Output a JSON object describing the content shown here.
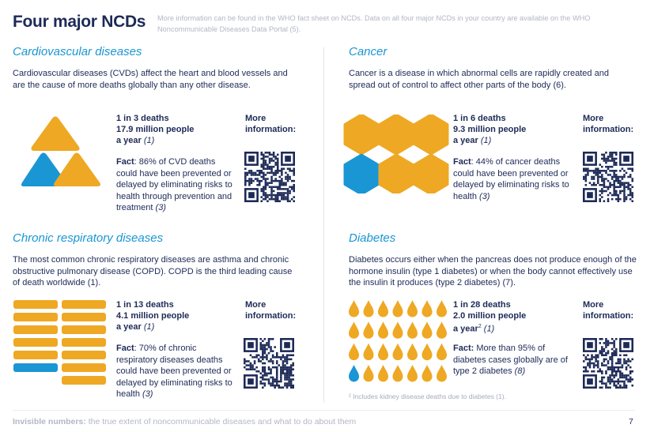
{
  "title": "Four major NCDs",
  "intro": "More information can be found in the WHO fact sheet on NCDs. Data on all four major NCDs in your country are available on the WHO Noncommunicable Diseases Data Portal (5).",
  "colors": {
    "navy": "#1d2a57",
    "blue": "#1a96d4",
    "orange": "#eea823",
    "grey": "#b3b7c6"
  },
  "more_info": "More information:",
  "sections": [
    {
      "title": "Cardiovascular diseases",
      "desc": "Cardiovascular diseases (CVDs) affect the heart and blood vessels and are the cause of more deaths globally than any other disease.",
      "stat1": "1 in 3 deaths",
      "stat2": "17.9 million people",
      "stat3": "a year",
      "ref": "(1)",
      "fact_label": "Fact",
      "fact": ": 86% of CVD deaths could have been prevented or delayed by eliminating risks to health through prevention and treatment ",
      "fact_ref": "(3)",
      "icon": "triangles",
      "icon_total": 3,
      "icon_highlighted": 1
    },
    {
      "title": "Cancer",
      "desc": "Cancer is a disease in which abnormal cells are rapidly created and spread out of control to affect other parts of the body (6).",
      "stat1": "1 in 6 deaths",
      "stat2": "9.3 million people",
      "stat3": "a year",
      "ref": "(1)",
      "fact_label": "Fact",
      "fact": ": 44% of cancer deaths could have been prevented or delayed by eliminating risks to health ",
      "fact_ref": "(3)",
      "icon": "hexagons",
      "icon_total": 6,
      "icon_highlighted": 1
    },
    {
      "title": "Chronic respiratory diseases",
      "desc": "The most common chronic respiratory diseases are asthma and chronic obstructive pulmonary disease (COPD). COPD is the third leading cause of death worldwide (1).",
      "stat1": "1 in 13 deaths",
      "stat2": "4.1 million people",
      "stat3": "a year",
      "ref": "(1)",
      "fact_label": "Fact",
      "fact": ": 70% of chronic respiratory diseases deaths could have been prevented or delayed by eliminating risks to health ",
      "fact_ref": "(3)",
      "icon": "bars",
      "icon_total": 13,
      "icon_highlighted": 1
    },
    {
      "title": "Diabetes",
      "desc": "Diabetes occurs either when the pancreas does not produce enough of the hormone insulin (type 1 diabetes) or when the body cannot effectively use the insulin it produces (type 2 diabetes) (7).",
      "stat1": "1 in 28 deaths",
      "stat2": "2.0 million people",
      "stat3": "a year",
      "sup": "2",
      "ref": "(1)",
      "fact_label": "Fact:",
      "fact": " More than 95% of diabetes cases globally are of type 2 diabetes ",
      "fact_ref": "(8)",
      "icon": "drops",
      "icon_total": 28,
      "icon_highlighted": 1,
      "footnote": "² Includes kidney disease deaths due to diabetes (1)."
    }
  ],
  "footer": {
    "bold": "Invisible numbers:",
    "text": " the true extent of noncommunicable diseases and what to do about them",
    "page": "7"
  }
}
